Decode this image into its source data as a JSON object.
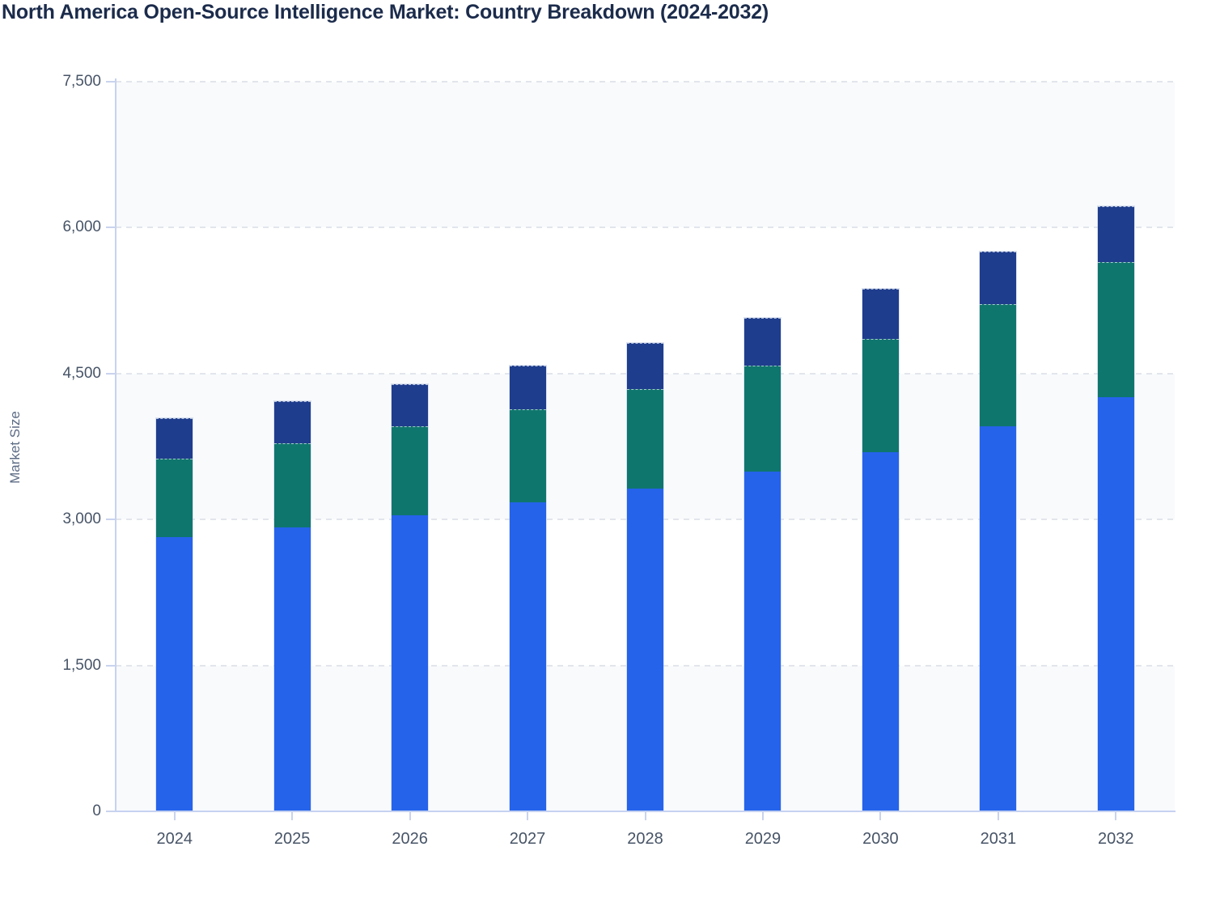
{
  "title": "North America Open-Source Intelligence Market: Country Breakdown (2024-2032)",
  "chart_data": {
    "type": "bar",
    "stacked": true,
    "title": "North America Open-Source Intelligence Market: Country Breakdown (2024-2032)",
    "xlabel": "",
    "ylabel": "Market Size",
    "categories": [
      "2024",
      "2025",
      "2026",
      "2027",
      "2028",
      "2029",
      "2030",
      "2031",
      "2032"
    ],
    "series": [
      {
        "name": "bottom-segment-blue",
        "color": "#2563eb",
        "values": [
          2815,
          2920,
          3045,
          3175,
          3315,
          3495,
          3695,
          3955,
          4260
        ]
      },
      {
        "name": "middle-segment-teal",
        "color": "#0f766e",
        "values": [
          810,
          865,
          910,
          955,
          1025,
          1085,
          1165,
          1260,
          1385
        ]
      },
      {
        "name": "top-segment-navy",
        "color": "#1f3d8d",
        "values": [
          420,
          430,
          435,
          455,
          475,
          495,
          510,
          535,
          575
        ]
      }
    ],
    "totals": [
      4045,
      4215,
      4390,
      4585,
      4815,
      5075,
      5370,
      5750,
      6220
    ],
    "ylim": [
      0,
      7500
    ],
    "y_ticks": [
      0,
      1500,
      3000,
      4500,
      6000,
      7500
    ],
    "y_tick_labels": [
      "0",
      "1,500",
      "3,000",
      "4,500",
      "6,000",
      "7,500"
    ],
    "grid": "horizontal-dashed",
    "legend": "none"
  },
  "colors": {
    "band_light": "#f8fafc",
    "band_white": "#ffffff",
    "axis_line": "#c6d2f0",
    "gridline": "#e2e5eb",
    "tick_label": "#475467",
    "title_color": "#1b2b4b",
    "y_axis_title_color": "#5c6b84"
  }
}
